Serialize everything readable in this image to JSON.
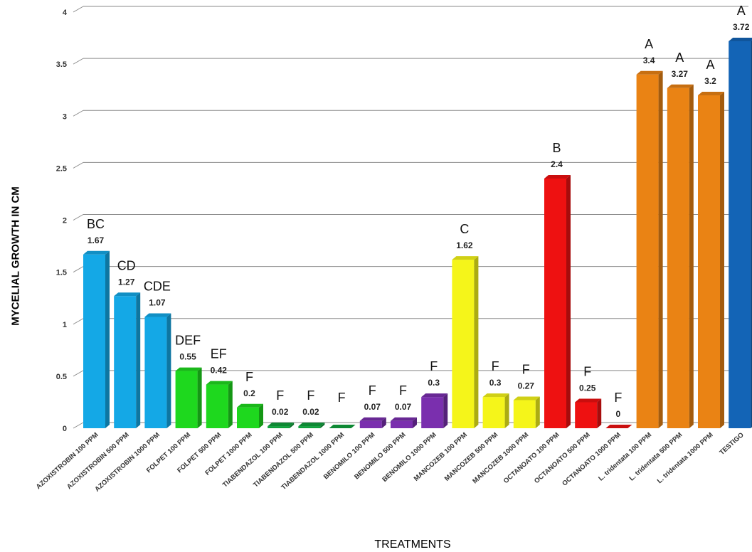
{
  "chart_data": {
    "type": "bar",
    "title": "",
    "xlabel": "TREATMENTS",
    "ylabel": "MYCELIAL GROWTH IN CM",
    "ylim": [
      0,
      4
    ],
    "yticks": [
      "0",
      "0.5",
      "1",
      "1.5",
      "2",
      "2.5",
      "3",
      "3.5",
      "4"
    ],
    "grid": true,
    "legend": "none",
    "categories": [
      "AZOXISTROBIN 100 PPM",
      "AZOXISTROBIN 500 PPM",
      "AZOXISTROBIN 1000 PPM",
      "FOLPET 100 PPM",
      "FOLPET 500 PPM",
      "FOLPET 1000 PPM",
      "TIABENDAZOL 100 PPM",
      "TIABENDAZOL 500 PPM",
      "TIABENDAZOL 1000 PPM",
      "BENOMILO 100 PPM",
      "BENOMILO 500 PPM",
      "BENOMILO 1000 PPM",
      "MANCOZEB 100 PPM",
      "MANCOZEB 500 PPM",
      "MANCOZEB 1000 PPM",
      "OCTANOATO 100 PPM",
      "OCTANOATO 500 PPM",
      "OCTANOATO 1000 PPM",
      "L. tridentata 100 PPM",
      "L. tridentata 500 PPM",
      "L. tridentata 1000 PPM",
      "TESTIGO"
    ],
    "values": [
      1.67,
      1.27,
      1.07,
      0.55,
      0.42,
      0.2,
      0.02,
      0.02,
      0,
      0.07,
      0.07,
      0.3,
      1.62,
      0.3,
      0.27,
      2.4,
      0.25,
      0,
      3.4,
      3.27,
      3.2,
      3.72
    ],
    "value_labels": [
      "1.67",
      "1.27",
      "1.07",
      "0.55",
      "0.42",
      "0.2",
      "0.02",
      "0.02",
      "",
      "0.07",
      "0.07",
      "0.3",
      "1.62",
      "0.3",
      "0.27",
      "2.4",
      "0.25",
      "0",
      "3.4",
      "3.27",
      "3.2",
      "3.72"
    ],
    "group_letters": [
      "BC",
      "CD",
      "CDE",
      "DEF",
      "EF",
      "F",
      "F",
      "F",
      "F",
      "F",
      "F",
      "F",
      "C",
      "F",
      "F",
      "B",
      "F",
      "F",
      "A",
      "A",
      "A",
      "A"
    ],
    "colors": [
      "#14a8e6",
      "#14a8e6",
      "#14a8e6",
      "#1ed81e",
      "#1ed81e",
      "#1ed81e",
      "#0fa03c",
      "#0fa03c",
      "#0fa03c",
      "#7a2fae",
      "#7a2fae",
      "#7a2fae",
      "#f5f51a",
      "#f5f51a",
      "#f5f51a",
      "#ee1111",
      "#ee1111",
      "#ee1111",
      "#ea8314",
      "#ea8314",
      "#ea8314",
      "#1364b6"
    ]
  }
}
